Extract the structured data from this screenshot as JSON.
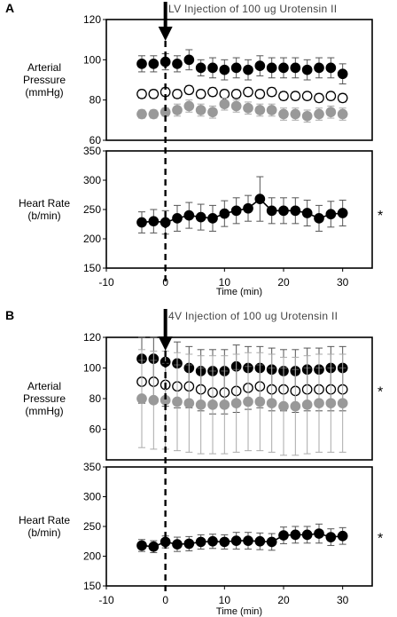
{
  "chart_data": [
    {
      "id": "A",
      "panel_label": "A",
      "annotation": "LV Injection of 100 ug Urotensin II",
      "type": "scatter",
      "x_ticks": [
        "-10",
        "0",
        "10",
        "20",
        "30"
      ],
      "xlim": [
        -10,
        35
      ],
      "xlabel": "Time (min)",
      "subplots": [
        {
          "ylabel": [
            "Arterial",
            "Pressure",
            "(mmHg)"
          ],
          "ylim": [
            60,
            120
          ],
          "y_ticks": [
            "60",
            "80",
            "100",
            "120"
          ],
          "marker": "",
          "series": [
            {
              "style": "filled-black",
              "x": [
                -4,
                -2,
                0,
                2,
                4,
                6,
                8,
                10,
                12,
                14,
                16,
                18,
                20,
                22,
                24,
                26,
                28,
                30
              ],
              "y": [
                98,
                98,
                99,
                98,
                100,
                96,
                96,
                95,
                96,
                95,
                97,
                96,
                96,
                96,
                95,
                96,
                96,
                93
              ],
              "err": [
                4,
                4,
                4,
                4,
                5,
                4,
                5,
                5,
                5,
                5,
                5,
                5,
                5,
                5,
                5,
                5,
                5,
                5
              ]
            },
            {
              "style": "open",
              "x": [
                -4,
                -2,
                0,
                2,
                4,
                6,
                8,
                10,
                12,
                14,
                16,
                18,
                20,
                22,
                24,
                26,
                28,
                30
              ],
              "y": [
                83,
                83,
                84,
                83,
                85,
                83,
                84,
                83,
                83,
                84,
                83,
                84,
                82,
                82,
                82,
                81,
                82,
                81
              ],
              "err": [
                2,
                2,
                2,
                2,
                2,
                2,
                2,
                2,
                2,
                2,
                2,
                2,
                2,
                2,
                2,
                2,
                2,
                2
              ]
            },
            {
              "style": "filled-gray",
              "x": [
                -4,
                -2,
                0,
                2,
                4,
                6,
                8,
                10,
                12,
                14,
                16,
                18,
                20,
                22,
                24,
                26,
                28,
                30
              ],
              "y": [
                73,
                73,
                74,
                75,
                77,
                75,
                74,
                78,
                77,
                76,
                75,
                75,
                73,
                73,
                72,
                73,
                74,
                73
              ],
              "err": [
                2,
                2,
                2,
                3,
                3,
                3,
                3,
                3,
                3,
                3,
                3,
                3,
                3,
                3,
                3,
                3,
                3,
                3
              ]
            }
          ]
        },
        {
          "ylabel": [
            "Heart Rate",
            "(b/min)"
          ],
          "ylim": [
            150,
            350
          ],
          "y_ticks": [
            "150",
            "200",
            "250",
            "300",
            "350"
          ],
          "marker": "*",
          "series": [
            {
              "style": "filled-black-line",
              "x": [
                -4,
                -2,
                0,
                2,
                4,
                6,
                8,
                10,
                12,
                14,
                16,
                18,
                20,
                22,
                24,
                26,
                28,
                30
              ],
              "y": [
                228,
                230,
                228,
                235,
                240,
                237,
                235,
                243,
                248,
                252,
                268,
                248,
                248,
                248,
                244,
                235,
                242,
                244
              ],
              "err": [
                18,
                20,
                20,
                22,
                22,
                22,
                22,
                22,
                22,
                22,
                38,
                22,
                22,
                22,
                22,
                22,
                22,
                22
              ]
            }
          ]
        }
      ]
    },
    {
      "id": "B",
      "panel_label": "B",
      "annotation": "4V Injection of 100 ug Urotensin II",
      "type": "scatter",
      "x_ticks": [
        "-10",
        "0",
        "10",
        "20",
        "30"
      ],
      "xlim": [
        -10,
        35
      ],
      "xlabel": "Time (min)",
      "subplots": [
        {
          "ylabel": [
            "Arterial",
            "Pressure",
            "(mmHg)"
          ],
          "ylim": [
            40,
            120
          ],
          "y_ticks": [
            "60",
            "80",
            "100",
            "120"
          ],
          "marker": "*",
          "series": [
            {
              "style": "filled-black",
              "x": [
                -4,
                -2,
                0,
                2,
                4,
                6,
                8,
                10,
                12,
                14,
                16,
                18,
                20,
                22,
                24,
                26,
                28,
                30
              ],
              "y": [
                106,
                106,
                104,
                103,
                100,
                98,
                98,
                98,
                101,
                100,
                100,
                99,
                98,
                98,
                99,
                99,
                100,
                100
              ],
              "err": [
                14,
                14,
                14,
                14,
                14,
                14,
                14,
                14,
                14,
                14,
                14,
                14,
                14,
                14,
                14,
                14,
                14,
                14
              ]
            },
            {
              "style": "open",
              "x": [
                -4,
                -2,
                0,
                2,
                4,
                6,
                8,
                10,
                12,
                14,
                16,
                18,
                20,
                22,
                24,
                26,
                28,
                30
              ],
              "y": [
                91,
                91,
                89,
                88,
                88,
                86,
                84,
                84,
                85,
                87,
                88,
                86,
                86,
                85,
                86,
                86,
                86,
                86
              ],
              "err": [
                14,
                14,
                14,
                14,
                14,
                14,
                14,
                14,
                14,
                14,
                14,
                14,
                14,
                14,
                14,
                14,
                14,
                14
              ]
            },
            {
              "style": "filled-gray",
              "x": [
                -4,
                -2,
                0,
                2,
                4,
                6,
                8,
                10,
                12,
                14,
                16,
                18,
                20,
                22,
                24,
                26,
                28,
                30
              ],
              "y": [
                80,
                79,
                79,
                78,
                77,
                76,
                76,
                76,
                77,
                78,
                78,
                77,
                75,
                75,
                76,
                77,
                77,
                77
              ],
              "err": [
                32,
                32,
                32,
                32,
                32,
                32,
                32,
                32,
                32,
                32,
                32,
                32,
                32,
                32,
                32,
                32,
                32,
                32
              ]
            }
          ]
        },
        {
          "ylabel": [
            "Heart Rate",
            "(b/min)"
          ],
          "ylim": [
            150,
            350
          ],
          "y_ticks": [
            "150",
            "200",
            "250",
            "300",
            "350"
          ],
          "marker": "*",
          "series": [
            {
              "style": "filled-black-line",
              "x": [
                -4,
                -2,
                0,
                2,
                4,
                6,
                8,
                10,
                12,
                14,
                16,
                18,
                20,
                22,
                24,
                26,
                28,
                30
              ],
              "y": [
                218,
                216,
                224,
                220,
                221,
                224,
                225,
                224,
                226,
                226,
                225,
                224,
                235,
                236,
                236,
                238,
                232,
                234
              ],
              "err": [
                10,
                10,
                10,
                12,
                12,
                12,
                12,
                12,
                14,
                14,
                14,
                14,
                14,
                14,
                14,
                16,
                14,
                14
              ]
            }
          ]
        }
      ]
    }
  ]
}
